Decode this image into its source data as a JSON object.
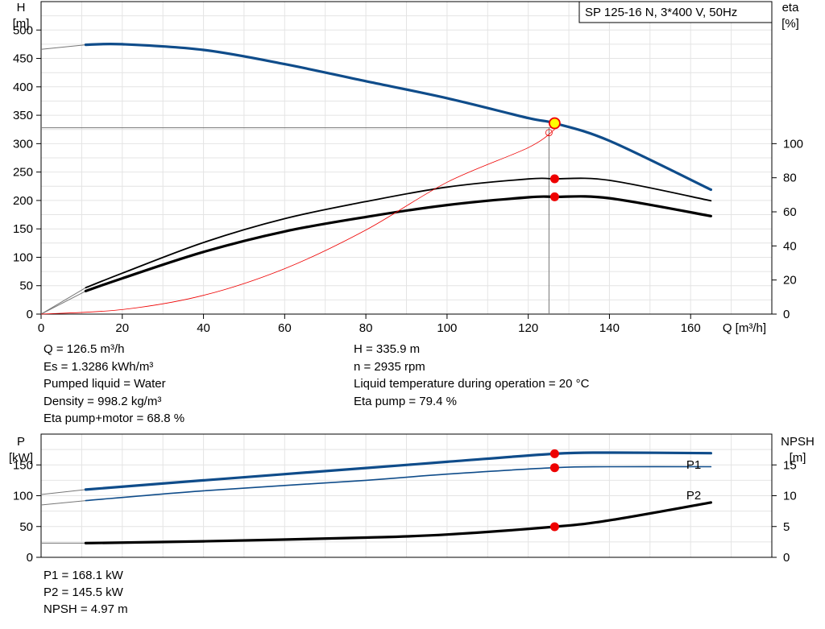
{
  "model_label": "SP 125-16 N, 3*400 V, 50Hz",
  "head_chart": {
    "y_left_label": [
      "H",
      "[m]"
    ],
    "y_right_label": [
      "eta",
      "[%]"
    ],
    "x_label": "Q [m³/h]",
    "x_ticks": [
      "0",
      "20",
      "40",
      "60",
      "80",
      "100",
      "120",
      "140",
      "160"
    ],
    "y_ticks": [
      "0",
      "50",
      "100",
      "150",
      "200",
      "250",
      "300",
      "350",
      "400",
      "450",
      "500"
    ],
    "eta_ticks": [
      "0",
      "20",
      "40",
      "60",
      "80",
      "100"
    ]
  },
  "power_chart": {
    "y_left_label": [
      "P",
      "[kW]"
    ],
    "y_right_label": [
      "NPSH",
      "[m]"
    ],
    "y_ticks": [
      "0",
      "50",
      "100",
      "150"
    ],
    "npsh_ticks": [
      "0",
      "5",
      "10",
      "15"
    ],
    "series_labels": [
      "P1",
      "P2"
    ]
  },
  "params_left": [
    "Q = 126.5 m³/h",
    "Es = 1.3286 kWh/m³",
    "Pumped liquid = Water",
    "Density = 998.2 kg/m³",
    "Eta pump+motor = 68.8 %"
  ],
  "params_right": [
    "H = 335.9 m",
    "n = 2935 rpm",
    "Liquid temperature during operation = 20 °C",
    "Eta pump = 79.4 %"
  ],
  "params_bottom": [
    "P1 = 168.1 kW",
    "P2 = 145.5 kW",
    "NPSH = 4.97 m"
  ],
  "colors": {
    "blue": "#0f4c8a",
    "red": "#ee0000",
    "yellow": "#ffff00",
    "gray": "#777777",
    "black": "#000000"
  },
  "chart_data": [
    {
      "type": "line",
      "xlabel": "Q [m³/h]",
      "ylabel": "H [m]",
      "y2label": "eta [%]",
      "xlim": [
        0,
        180
      ],
      "ylim": [
        0,
        550
      ],
      "y2lim": [
        0,
        100
      ],
      "grid": true,
      "operating_point": {
        "Q": 126.5,
        "H": 335.9,
        "eta_pump": 79.4,
        "eta_pump_motor": 68.8
      },
      "series": [
        {
          "axis": "left",
          "style": "thick-blue",
          "x": [
            0,
            11,
            20,
            40,
            60,
            80,
            100,
            120,
            126.5,
            140,
            165
          ],
          "y": [
            466,
            474,
            475,
            465,
            440,
            410,
            380,
            345,
            335.9,
            305,
            219
          ]
        },
        {
          "axis": "right",
          "style": "thin-black",
          "x": [
            0,
            11,
            20,
            40,
            60,
            80,
            100,
            120,
            126.5,
            140,
            165
          ],
          "y": [
            0,
            15.5,
            24,
            42,
            56,
            66,
            74.5,
            79.3,
            79.4,
            78.5,
            66.5
          ]
        },
        {
          "axis": "right",
          "style": "thick-black",
          "x": [
            0,
            11,
            20,
            40,
            60,
            80,
            100,
            120,
            126.5,
            140,
            165
          ],
          "y": [
            0,
            13.5,
            21,
            36.5,
            48.5,
            57,
            64,
            68.5,
            68.8,
            68,
            57.5
          ]
        },
        {
          "axis": "left",
          "style": "thin-red",
          "x": [
            0,
            20,
            40,
            60,
            80,
            100,
            120,
            126.5
          ],
          "y": [
            0,
            8,
            33,
            80,
            148,
            232,
            293,
            325
          ]
        }
      ]
    },
    {
      "type": "line",
      "ylabel": "P [kW]",
      "y2label": "NPSH [m]",
      "xlim": [
        0,
        180
      ],
      "ylim": [
        0,
        200
      ],
      "y2lim": [
        0,
        20
      ],
      "grid": true,
      "operating_point": {
        "Q": 126.5,
        "P1": 168.1,
        "P2": 145.5,
        "NPSH": 4.97
      },
      "series": [
        {
          "name": "P1",
          "axis": "left",
          "style": "thick-blue",
          "x": [
            0,
            11,
            40,
            80,
            100,
            126.5,
            140,
            165
          ],
          "y": [
            102,
            110,
            125,
            145,
            155,
            168.1,
            170,
            169
          ]
        },
        {
          "name": "P2",
          "axis": "left",
          "style": "thin-blue",
          "x": [
            0,
            11,
            40,
            80,
            100,
            126.5,
            140,
            165
          ],
          "y": [
            85,
            92,
            108,
            125,
            135,
            145.5,
            147,
            147
          ]
        },
        {
          "axis": "right",
          "style": "thick-black",
          "x": [
            0,
            11,
            40,
            80,
            100,
            126.5,
            140,
            165
          ],
          "y": [
            2.3,
            2.3,
            2.6,
            3.2,
            3.7,
            4.97,
            6,
            8.9
          ]
        }
      ]
    }
  ]
}
